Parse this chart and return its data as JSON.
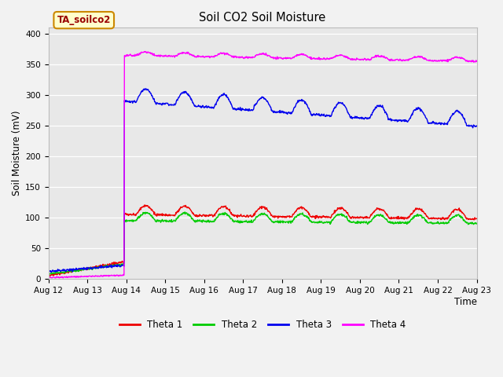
{
  "title": "Soil CO2 Soil Moisture",
  "xlabel": "Time",
  "ylabel": "Soil Moisture (mV)",
  "ylim": [
    0,
    410
  ],
  "plot_bg_color": "#e8e8e8",
  "fig_bg_color": "#f2f2f2",
  "annotation_text": "TA_soilco2",
  "annotation_facecolor": "#ffffcc",
  "annotation_edgecolor": "#cc8800",
  "annotation_textcolor": "#990000",
  "legend_entries": [
    "Theta 1",
    "Theta 2",
    "Theta 3",
    "Theta 4"
  ],
  "line_colors": [
    "#ee0000",
    "#00cc00",
    "#0000ee",
    "#ff00ff"
  ],
  "line_width": 1.0,
  "xtick_labels": [
    "Aug 12",
    "Aug 13",
    "Aug 14",
    "Aug 15",
    "Aug 16",
    "Aug 17",
    "Aug 18",
    "Aug 19",
    "Aug 20",
    "Aug 21",
    "Aug 22",
    "Aug 23"
  ],
  "ytick_labels": [
    0,
    50,
    100,
    150,
    200,
    250,
    300,
    350,
    400
  ],
  "n_points": 1100,
  "jump_day": 2.0
}
